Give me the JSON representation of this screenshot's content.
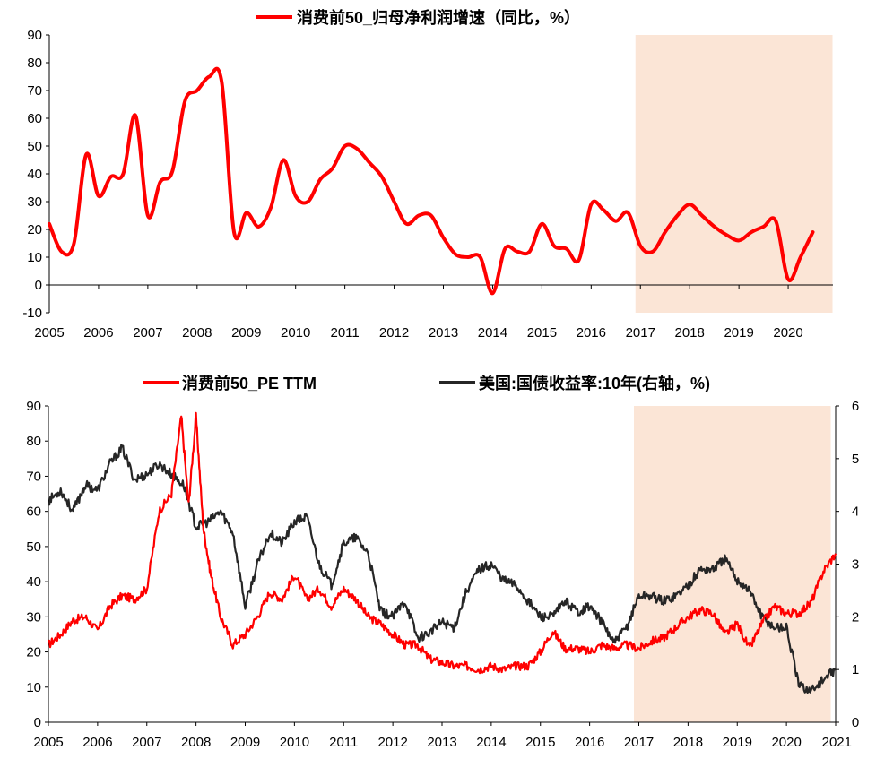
{
  "chart_data": [
    {
      "type": "line",
      "title": "",
      "xlabel": "",
      "ylabel": "",
      "x_ticks": [
        "2005",
        "2006",
        "2007",
        "2008",
        "2009",
        "2010",
        "2011",
        "2012",
        "2013",
        "2014",
        "2015",
        "2016",
        "2017",
        "2018",
        "2019",
        "2020"
      ],
      "x_range": [
        2005,
        2021
      ],
      "y_ticks": [
        -10,
        0,
        10,
        20,
        30,
        40,
        50,
        60,
        70,
        80,
        90
      ],
      "ylim": [
        -10,
        90
      ],
      "grid": false,
      "legend": {
        "placement": "top-center"
      },
      "highlight_band": {
        "from": 2016.9,
        "to": 2020.9,
        "color": "#fbe5d6"
      },
      "series": [
        {
          "name": "消费前50_归母净利润增速（同比，%）",
          "color": "#ff0000",
          "x": [
            2005.0,
            2005.25,
            2005.5,
            2005.75,
            2006.0,
            2006.25,
            2006.5,
            2006.75,
            2007.0,
            2007.25,
            2007.5,
            2007.75,
            2008.0,
            2008.25,
            2008.5,
            2008.75,
            2009.0,
            2009.25,
            2009.5,
            2009.75,
            2010.0,
            2010.25,
            2010.5,
            2010.75,
            2011.0,
            2011.25,
            2011.5,
            2011.75,
            2012.0,
            2012.25,
            2012.5,
            2012.75,
            2013.0,
            2013.25,
            2013.5,
            2013.75,
            2014.0,
            2014.25,
            2014.5,
            2014.75,
            2015.0,
            2015.25,
            2015.5,
            2015.75,
            2016.0,
            2016.25,
            2016.5,
            2016.75,
            2017.0,
            2017.25,
            2017.5,
            2017.75,
            2018.0,
            2018.25,
            2018.5,
            2018.75,
            2019.0,
            2019.25,
            2019.5,
            2019.75,
            2020.0,
            2020.25,
            2020.5
          ],
          "values": [
            22,
            12,
            15,
            47,
            32,
            39,
            40,
            61,
            25,
            37,
            41,
            66,
            70,
            75,
            73,
            19,
            26,
            21,
            28,
            45,
            32,
            30,
            38,
            42,
            50,
            49,
            44,
            39,
            30,
            22,
            25,
            25,
            17,
            11,
            10,
            10,
            -3,
            13,
            12,
            12,
            22,
            14,
            13,
            9,
            29,
            27,
            23,
            26,
            14,
            12,
            19,
            25,
            29,
            25,
            21,
            18,
            16,
            19,
            21,
            23,
            2,
            10,
            19
          ]
        }
      ]
    },
    {
      "type": "line",
      "title": "",
      "xlabel": "",
      "ylabel": "",
      "x_ticks": [
        "2005",
        "2006",
        "2007",
        "2008",
        "2009",
        "2010",
        "2011",
        "2012",
        "2013",
        "2014",
        "2015",
        "2016",
        "2017",
        "2018",
        "2019",
        "2020",
        "2021"
      ],
      "x_range": [
        2005,
        2021
      ],
      "y_left_ticks": [
        0,
        10,
        20,
        30,
        40,
        50,
        60,
        70,
        80,
        90
      ],
      "ylim_left": [
        0,
        90
      ],
      "y_right_ticks": [
        0,
        1,
        2,
        3,
        4,
        5,
        6
      ],
      "ylim_right": [
        0,
        6
      ],
      "grid": false,
      "legend": {
        "placement": "top-center"
      },
      "highlight_band": {
        "from": 2016.9,
        "to": 2020.9,
        "color": "#fbe5d6"
      },
      "series": [
        {
          "name": "消费前50_PE TTM",
          "axis": "left",
          "color": "#ff0000",
          "x": [
            2005.0,
            2005.25,
            2005.5,
            2005.75,
            2006.0,
            2006.25,
            2006.5,
            2006.75,
            2007.0,
            2007.25,
            2007.5,
            2007.7,
            2007.85,
            2008.0,
            2008.15,
            2008.3,
            2008.5,
            2008.75,
            2009.0,
            2009.25,
            2009.5,
            2009.75,
            2010.0,
            2010.25,
            2010.5,
            2010.75,
            2011.0,
            2011.25,
            2011.5,
            2011.75,
            2012.0,
            2012.25,
            2012.5,
            2012.75,
            2013.0,
            2013.25,
            2013.5,
            2013.75,
            2014.0,
            2014.25,
            2014.5,
            2014.75,
            2015.0,
            2015.25,
            2015.5,
            2015.75,
            2016.0,
            2016.25,
            2016.5,
            2016.75,
            2017.0,
            2017.25,
            2017.5,
            2017.75,
            2018.0,
            2018.25,
            2018.5,
            2018.75,
            2019.0,
            2019.25,
            2019.5,
            2019.75,
            2020.0,
            2020.25,
            2020.5,
            2020.75,
            2021.0
          ],
          "values": [
            22,
            25,
            29,
            30,
            26,
            33,
            36,
            35,
            38,
            60,
            65,
            87,
            62,
            87,
            55,
            42,
            30,
            22,
            25,
            30,
            37,
            35,
            42,
            35,
            38,
            33,
            38,
            35,
            30,
            28,
            25,
            22,
            22,
            18,
            17,
            16,
            16,
            15,
            16,
            15,
            16,
            16,
            20,
            26,
            21,
            21,
            20,
            22,
            21,
            22,
            21,
            23,
            24,
            27,
            30,
            32,
            31,
            25,
            28,
            21,
            28,
            33,
            31,
            31,
            34,
            43,
            48
          ]
        },
        {
          "name": "美国:国债收益率:10年(右轴，%)",
          "axis": "right",
          "color": "#262626",
          "x": [
            2005.0,
            2005.25,
            2005.5,
            2005.75,
            2006.0,
            2006.25,
            2006.5,
            2006.75,
            2007.0,
            2007.25,
            2007.5,
            2007.75,
            2008.0,
            2008.25,
            2008.5,
            2008.75,
            2009.0,
            2009.25,
            2009.5,
            2009.75,
            2010.0,
            2010.25,
            2010.5,
            2010.75,
            2011.0,
            2011.25,
            2011.5,
            2011.75,
            2012.0,
            2012.25,
            2012.5,
            2012.75,
            2013.0,
            2013.25,
            2013.5,
            2013.75,
            2014.0,
            2014.25,
            2014.5,
            2014.75,
            2015.0,
            2015.25,
            2015.5,
            2015.75,
            2016.0,
            2016.25,
            2016.5,
            2016.75,
            2017.0,
            2017.25,
            2017.5,
            2017.75,
            2018.0,
            2018.25,
            2018.5,
            2018.75,
            2019.0,
            2019.25,
            2019.5,
            2019.75,
            2020.0,
            2020.25,
            2020.5,
            2020.75,
            2021.0
          ],
          "values": [
            4.2,
            4.4,
            4.0,
            4.5,
            4.4,
            4.9,
            5.2,
            4.6,
            4.7,
            4.9,
            4.7,
            4.5,
            3.7,
            3.8,
            4.0,
            3.6,
            2.2,
            3.0,
            3.6,
            3.4,
            3.8,
            3.9,
            3.0,
            2.6,
            3.4,
            3.5,
            3.2,
            2.1,
            2.0,
            2.3,
            1.6,
            1.7,
            1.9,
            1.8,
            2.5,
            2.9,
            3.0,
            2.7,
            2.6,
            2.3,
            2.0,
            2.0,
            2.3,
            2.1,
            2.2,
            1.9,
            1.5,
            1.8,
            2.4,
            2.4,
            2.3,
            2.4,
            2.6,
            2.9,
            2.9,
            3.1,
            2.7,
            2.5,
            2.0,
            1.8,
            1.8,
            0.7,
            0.6,
            0.8,
            1.0
          ]
        }
      ]
    }
  ]
}
